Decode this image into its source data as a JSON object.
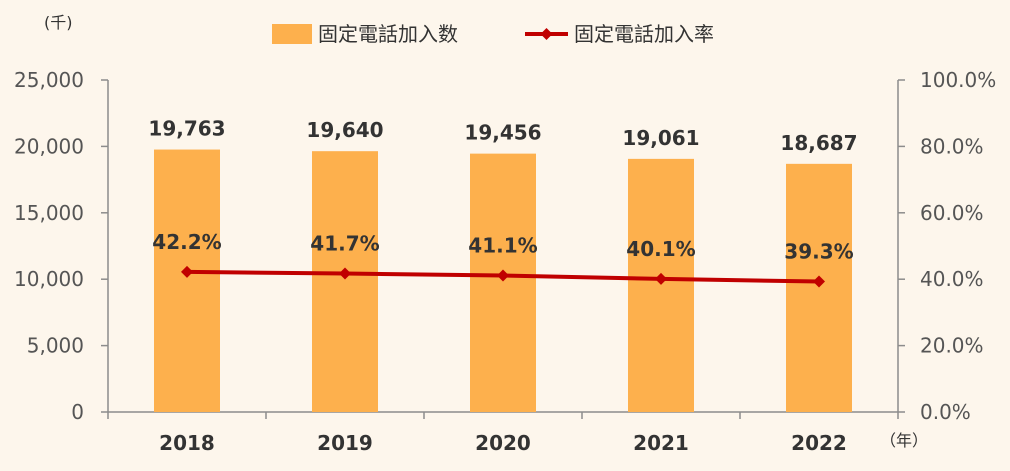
{
  "chart_data": {
    "type": "bar",
    "title": "",
    "categories": [
      "2018",
      "2019",
      "2020",
      "2021",
      "2022"
    ],
    "series": [
      {
        "name": "固定電話加入数",
        "type": "bar",
        "axis": "left",
        "values": [
          19763,
          19640,
          19456,
          19061,
          18687
        ],
        "labels": [
          "19,763",
          "19,640",
          "19,456",
          "19,061",
          "18,687"
        ],
        "color": "#FDB04D"
      },
      {
        "name": "固定電話加入率",
        "type": "line",
        "axis": "right",
        "values": [
          42.2,
          41.7,
          41.1,
          40.1,
          39.3
        ],
        "labels": [
          "42.2%",
          "41.7%",
          "41.1%",
          "40.1%",
          "39.3%"
        ],
        "color": "#C00000",
        "marker": "diamond"
      }
    ],
    "y_left": {
      "label": "(千)",
      "ylim": [
        0,
        25000
      ],
      "ticks": [
        "0",
        "5,000",
        "10,000",
        "15,000",
        "20,000",
        "25,000"
      ]
    },
    "y_right": {
      "ylim": [
        0,
        100
      ],
      "ticks": [
        "0.0%",
        "20.0%",
        "40.0%",
        "60.0%",
        "80.0%",
        "100.0%"
      ]
    },
    "x_unit": "（年）",
    "legend": "top",
    "grid": false
  }
}
